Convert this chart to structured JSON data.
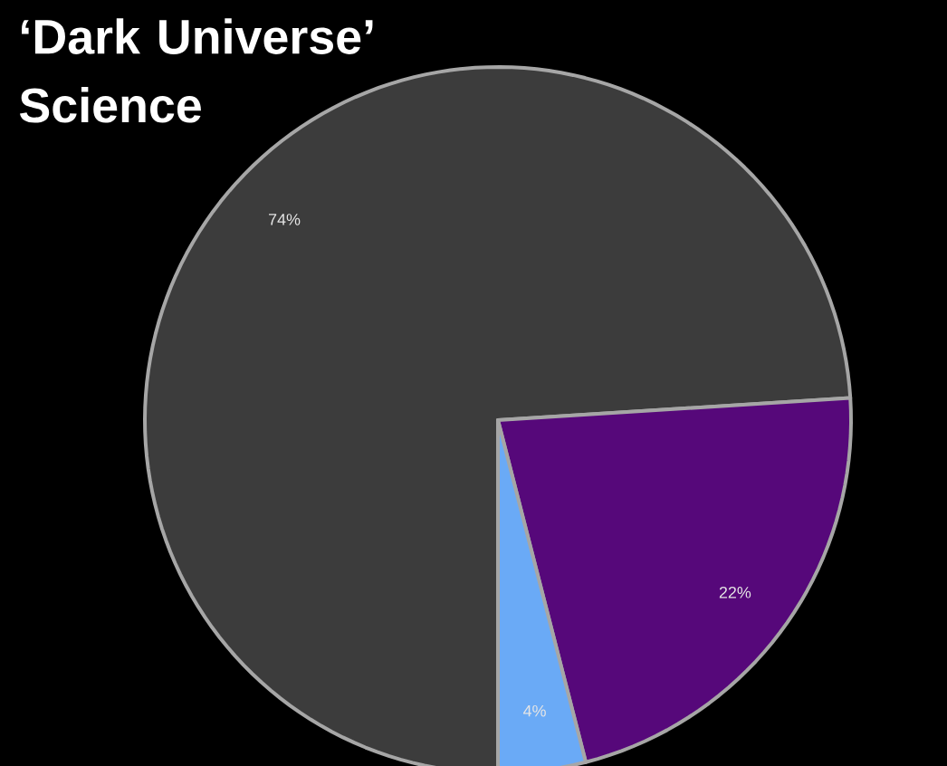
{
  "chart_data": {
    "type": "pie",
    "title": "‘Dark Universe’ Science",
    "categories": [
      null,
      null,
      null
    ],
    "values": [
      74,
      22,
      4
    ],
    "colors": [
      "#3c3c3c",
      "#56087a",
      "#6aaaf6"
    ],
    "value_labels": [
      "74%",
      "22%",
      "4%"
    ]
  }
}
